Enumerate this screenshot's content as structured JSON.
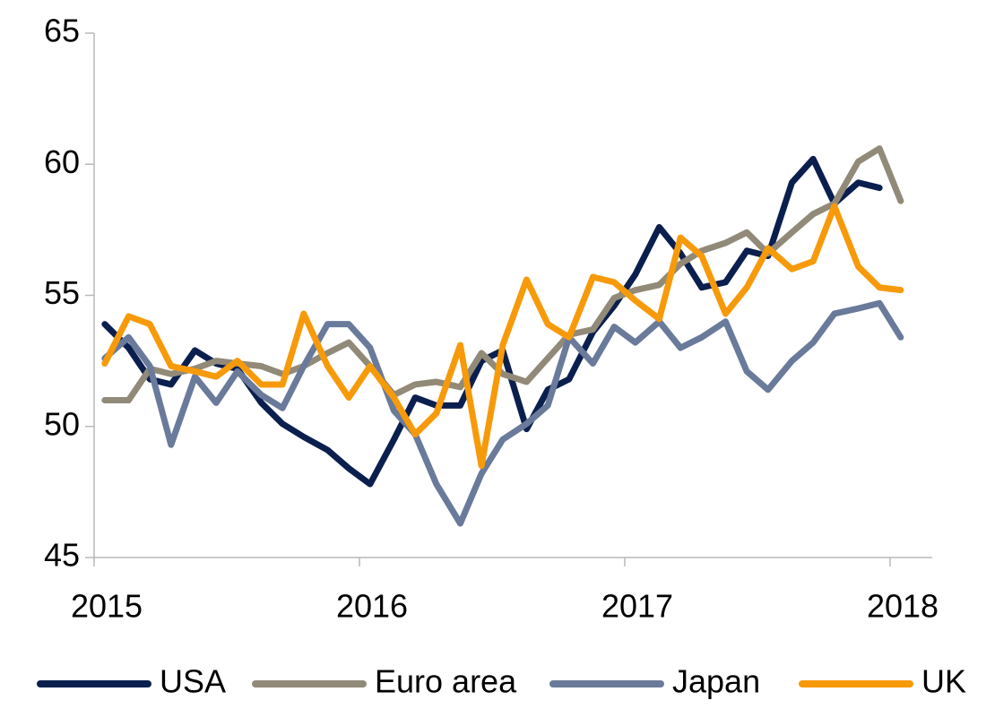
{
  "chart_data": {
    "type": "line",
    "x": [
      2015.04,
      2015.13,
      2015.21,
      2015.29,
      2015.38,
      2015.46,
      2015.54,
      2015.63,
      2015.71,
      2015.79,
      2015.88,
      2015.96,
      2016.04,
      2016.13,
      2016.21,
      2016.29,
      2016.38,
      2016.46,
      2016.54,
      2016.63,
      2016.71,
      2016.79,
      2016.88,
      2016.96,
      2017.04,
      2017.13,
      2017.21,
      2017.29,
      2017.38,
      2017.46,
      2017.54,
      2017.63,
      2017.71,
      2017.79,
      2017.88,
      2017.96,
      2018.04
    ],
    "series": [
      {
        "name": "USA",
        "color": "#0b1f4f",
        "values": [
          53.9,
          53.0,
          51.8,
          51.6,
          52.9,
          52.4,
          52.2,
          50.9,
          50.1,
          49.6,
          49.1,
          48.4,
          47.8,
          49.5,
          51.1,
          50.8,
          50.8,
          52.5,
          52.9,
          49.9,
          51.4,
          51.8,
          53.6,
          54.6,
          55.8,
          57.6,
          56.6,
          55.3,
          55.5,
          56.7,
          56.5,
          59.3,
          60.2,
          58.5,
          59.3,
          59.1,
          null
        ]
      },
      {
        "name": "Euro area",
        "color": "#928a78",
        "values": [
          51.0,
          51.0,
          52.2,
          52.0,
          52.2,
          52.5,
          52.4,
          52.3,
          52.0,
          52.3,
          52.8,
          53.2,
          52.3,
          51.2,
          51.6,
          51.7,
          51.5,
          52.8,
          52.0,
          51.7,
          52.6,
          53.5,
          53.7,
          54.9,
          55.2,
          55.4,
          56.2,
          56.7,
          57.0,
          57.4,
          56.6,
          57.4,
          58.1,
          58.5,
          60.1,
          60.6,
          58.6
        ]
      },
      {
        "name": "Japan",
        "color": "#6a7a9a",
        "values": [
          52.6,
          53.4,
          52.3,
          49.3,
          51.9,
          50.9,
          52.1,
          51.2,
          50.7,
          52.3,
          53.9,
          53.9,
          53.0,
          50.6,
          49.7,
          47.8,
          46.3,
          48.2,
          49.5,
          50.1,
          50.8,
          53.4,
          52.4,
          53.8,
          53.2,
          54.0,
          53.0,
          53.4,
          54.0,
          52.1,
          51.4,
          52.5,
          53.2,
          54.3,
          54.5,
          54.7,
          53.4
        ]
      },
      {
        "name": "UK",
        "color": "#f79a0a",
        "values": [
          52.4,
          54.2,
          53.9,
          52.3,
          52.1,
          51.9,
          52.5,
          51.6,
          51.6,
          54.3,
          52.3,
          51.1,
          52.3,
          51.1,
          49.7,
          50.5,
          53.1,
          48.5,
          53.1,
          55.6,
          53.9,
          53.4,
          55.7,
          55.5,
          54.8,
          54.1,
          57.2,
          56.5,
          54.3,
          55.3,
          56.8,
          56.0,
          56.3,
          58.4,
          56.1,
          55.3,
          55.2
        ]
      }
    ],
    "xlim": [
      2015,
      2018
    ],
    "xticks": [
      2015,
      2016,
      2017,
      2018
    ],
    "ylim": [
      45,
      65
    ],
    "yticks": [
      45,
      50,
      55,
      60,
      65
    ],
    "legend": "bottom"
  }
}
